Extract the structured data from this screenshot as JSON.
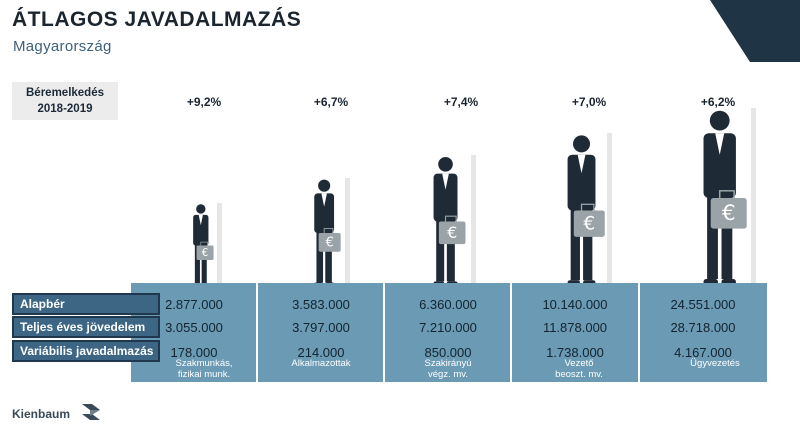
{
  "header": {
    "title": "ÁTLAGOS JAVADALMAZÁS",
    "subtitle": "Magyarország"
  },
  "raise_box": {
    "line1": "Béremelkedés",
    "line2": "2018-2019"
  },
  "footer": {
    "brand": "Kienbaum"
  },
  "colors": {
    "band": "#6a9ab4",
    "label_bg": "#3d6684",
    "figure": "#1e2b36",
    "bag": "#9aa3a8",
    "corner": "#1f3445"
  },
  "chart_data": {
    "type": "table",
    "categories": [
      {
        "line1": "Szakmunkás,",
        "line2": "fizikai munk."
      },
      {
        "line1": "",
        "line2": "Alkalmazottak"
      },
      {
        "line1": "Szakirányú",
        "line2": "végz. mv."
      },
      {
        "line1": "Vezető",
        "line2": "beoszt. mv."
      },
      {
        "line1": "",
        "line2": "Ügyvezetés"
      }
    ],
    "raise": [
      "+9,2%",
      "+6,7%",
      "+7,4%",
      "+7,0%",
      "+6,2%"
    ],
    "rows": [
      {
        "name": "Alapbér",
        "values": [
          "2.877.000",
          "3.583.000",
          "6.360.000",
          "10.140.000",
          "24.551.000"
        ]
      },
      {
        "name": "Teljes éves jövedelem",
        "values": [
          "3.055.000",
          "3.797.000",
          "7.210.000",
          "11.878.000",
          "28.718.000"
        ]
      },
      {
        "name": "Variábilis javadalmazás",
        "values": [
          "178.000",
          "214.000",
          "850.000",
          "1.738.000",
          "4.167.000"
        ]
      }
    ],
    "base_salary_numeric": [
      2877000,
      3583000,
      6360000,
      10140000,
      24551000
    ]
  }
}
